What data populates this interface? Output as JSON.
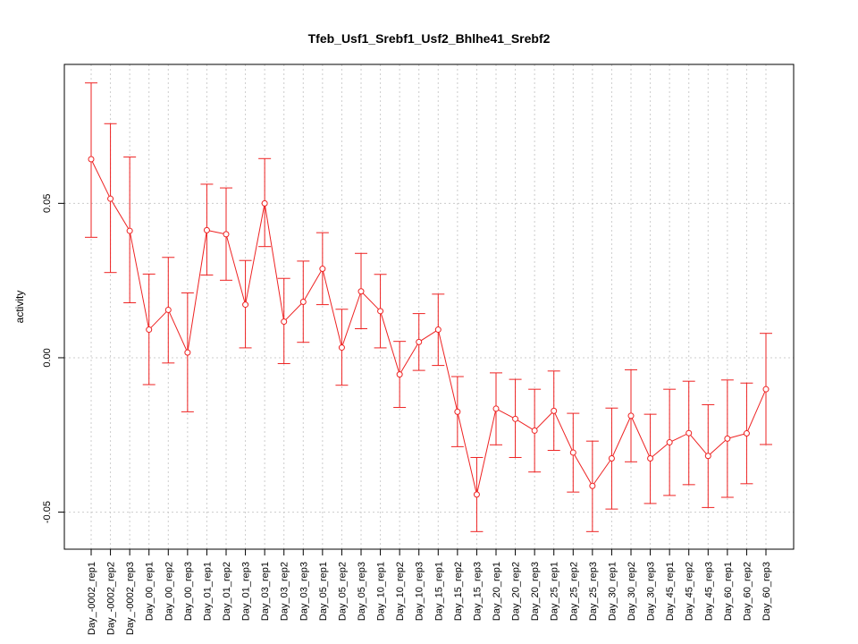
{
  "chart_data": {
    "type": "line",
    "title": "Tfeb_Usf1_Srebf1_Usf2_Bhlhe41_Srebf2",
    "xlabel": "",
    "ylabel": "activity",
    "ylim": [
      -0.062,
      0.095
    ],
    "yticks": [
      -0.05,
      0.0,
      0.05
    ],
    "ytick_labels": [
      "-0.05",
      "0.00",
      "0.05"
    ],
    "grid": true,
    "color": "#ee2222",
    "categories": [
      "Day_-0002_rep1",
      "Day_-0002_rep2",
      "Day_-0002_rep3",
      "Day_00_rep1",
      "Day_00_rep2",
      "Day_00_rep3",
      "Day_01_rep1",
      "Day_01_rep2",
      "Day_01_rep3",
      "Day_03_rep1",
      "Day_03_rep2",
      "Day_03_rep3",
      "Day_05_rep1",
      "Day_05_rep2",
      "Day_05_rep3",
      "Day_10_rep1",
      "Day_10_rep2",
      "Day_10_rep3",
      "Day_15_rep1",
      "Day_15_rep2",
      "Day_15_rep3",
      "Day_20_rep1",
      "Day_20_rep2",
      "Day_20_rep3",
      "Day_25_rep1",
      "Day_25_rep2",
      "Day_25_rep3",
      "Day_30_rep1",
      "Day_30_rep2",
      "Day_30_rep3",
      "Day_45_rep1",
      "Day_45_rep2",
      "Day_45_rep3",
      "Day_60_rep1",
      "Day_60_rep2",
      "Day_60_rep3"
    ],
    "values": [
      0.0643,
      0.0515,
      0.0411,
      0.0091,
      0.0155,
      0.0017,
      0.0413,
      0.04,
      0.0172,
      0.05,
      0.0117,
      0.0181,
      0.0288,
      0.0033,
      0.0215,
      0.0151,
      -0.0054,
      0.0051,
      0.0091,
      -0.0175,
      -0.0443,
      -0.0165,
      -0.0198,
      -0.0236,
      -0.0172,
      -0.0307,
      -0.0415,
      -0.0326,
      -0.0188,
      -0.0326,
      -0.0274,
      -0.0244,
      -0.0318,
      -0.0262,
      -0.0245,
      -0.0102
    ],
    "err_low": [
      0.039,
      0.0276,
      0.0178,
      -0.0087,
      -0.0017,
      -0.0175,
      0.0268,
      0.0251,
      0.0032,
      0.036,
      -0.0019,
      0.005,
      0.0172,
      -0.0089,
      0.0094,
      0.0032,
      -0.0161,
      -0.0041,
      -0.0025,
      -0.0288,
      -0.0563,
      -0.0282,
      -0.0323,
      -0.037,
      -0.03,
      -0.0435,
      -0.0563,
      -0.049,
      -0.0337,
      -0.0472,
      -0.0446,
      -0.0411,
      -0.0485,
      -0.0452,
      -0.0408,
      -0.0281
    ],
    "err_high": [
      0.089,
      0.0758,
      0.065,
      0.0271,
      0.0325,
      0.021,
      0.0562,
      0.055,
      0.0315,
      0.0645,
      0.0257,
      0.0313,
      0.0405,
      0.0157,
      0.0338,
      0.027,
      0.0053,
      0.0143,
      0.0206,
      -0.0061,
      -0.0323,
      -0.0049,
      -0.007,
      -0.0102,
      -0.0043,
      -0.018,
      -0.027,
      -0.0163,
      -0.0039,
      -0.0183,
      -0.0102,
      -0.0076,
      -0.0152,
      -0.0072,
      -0.0082,
      0.0079
    ]
  }
}
